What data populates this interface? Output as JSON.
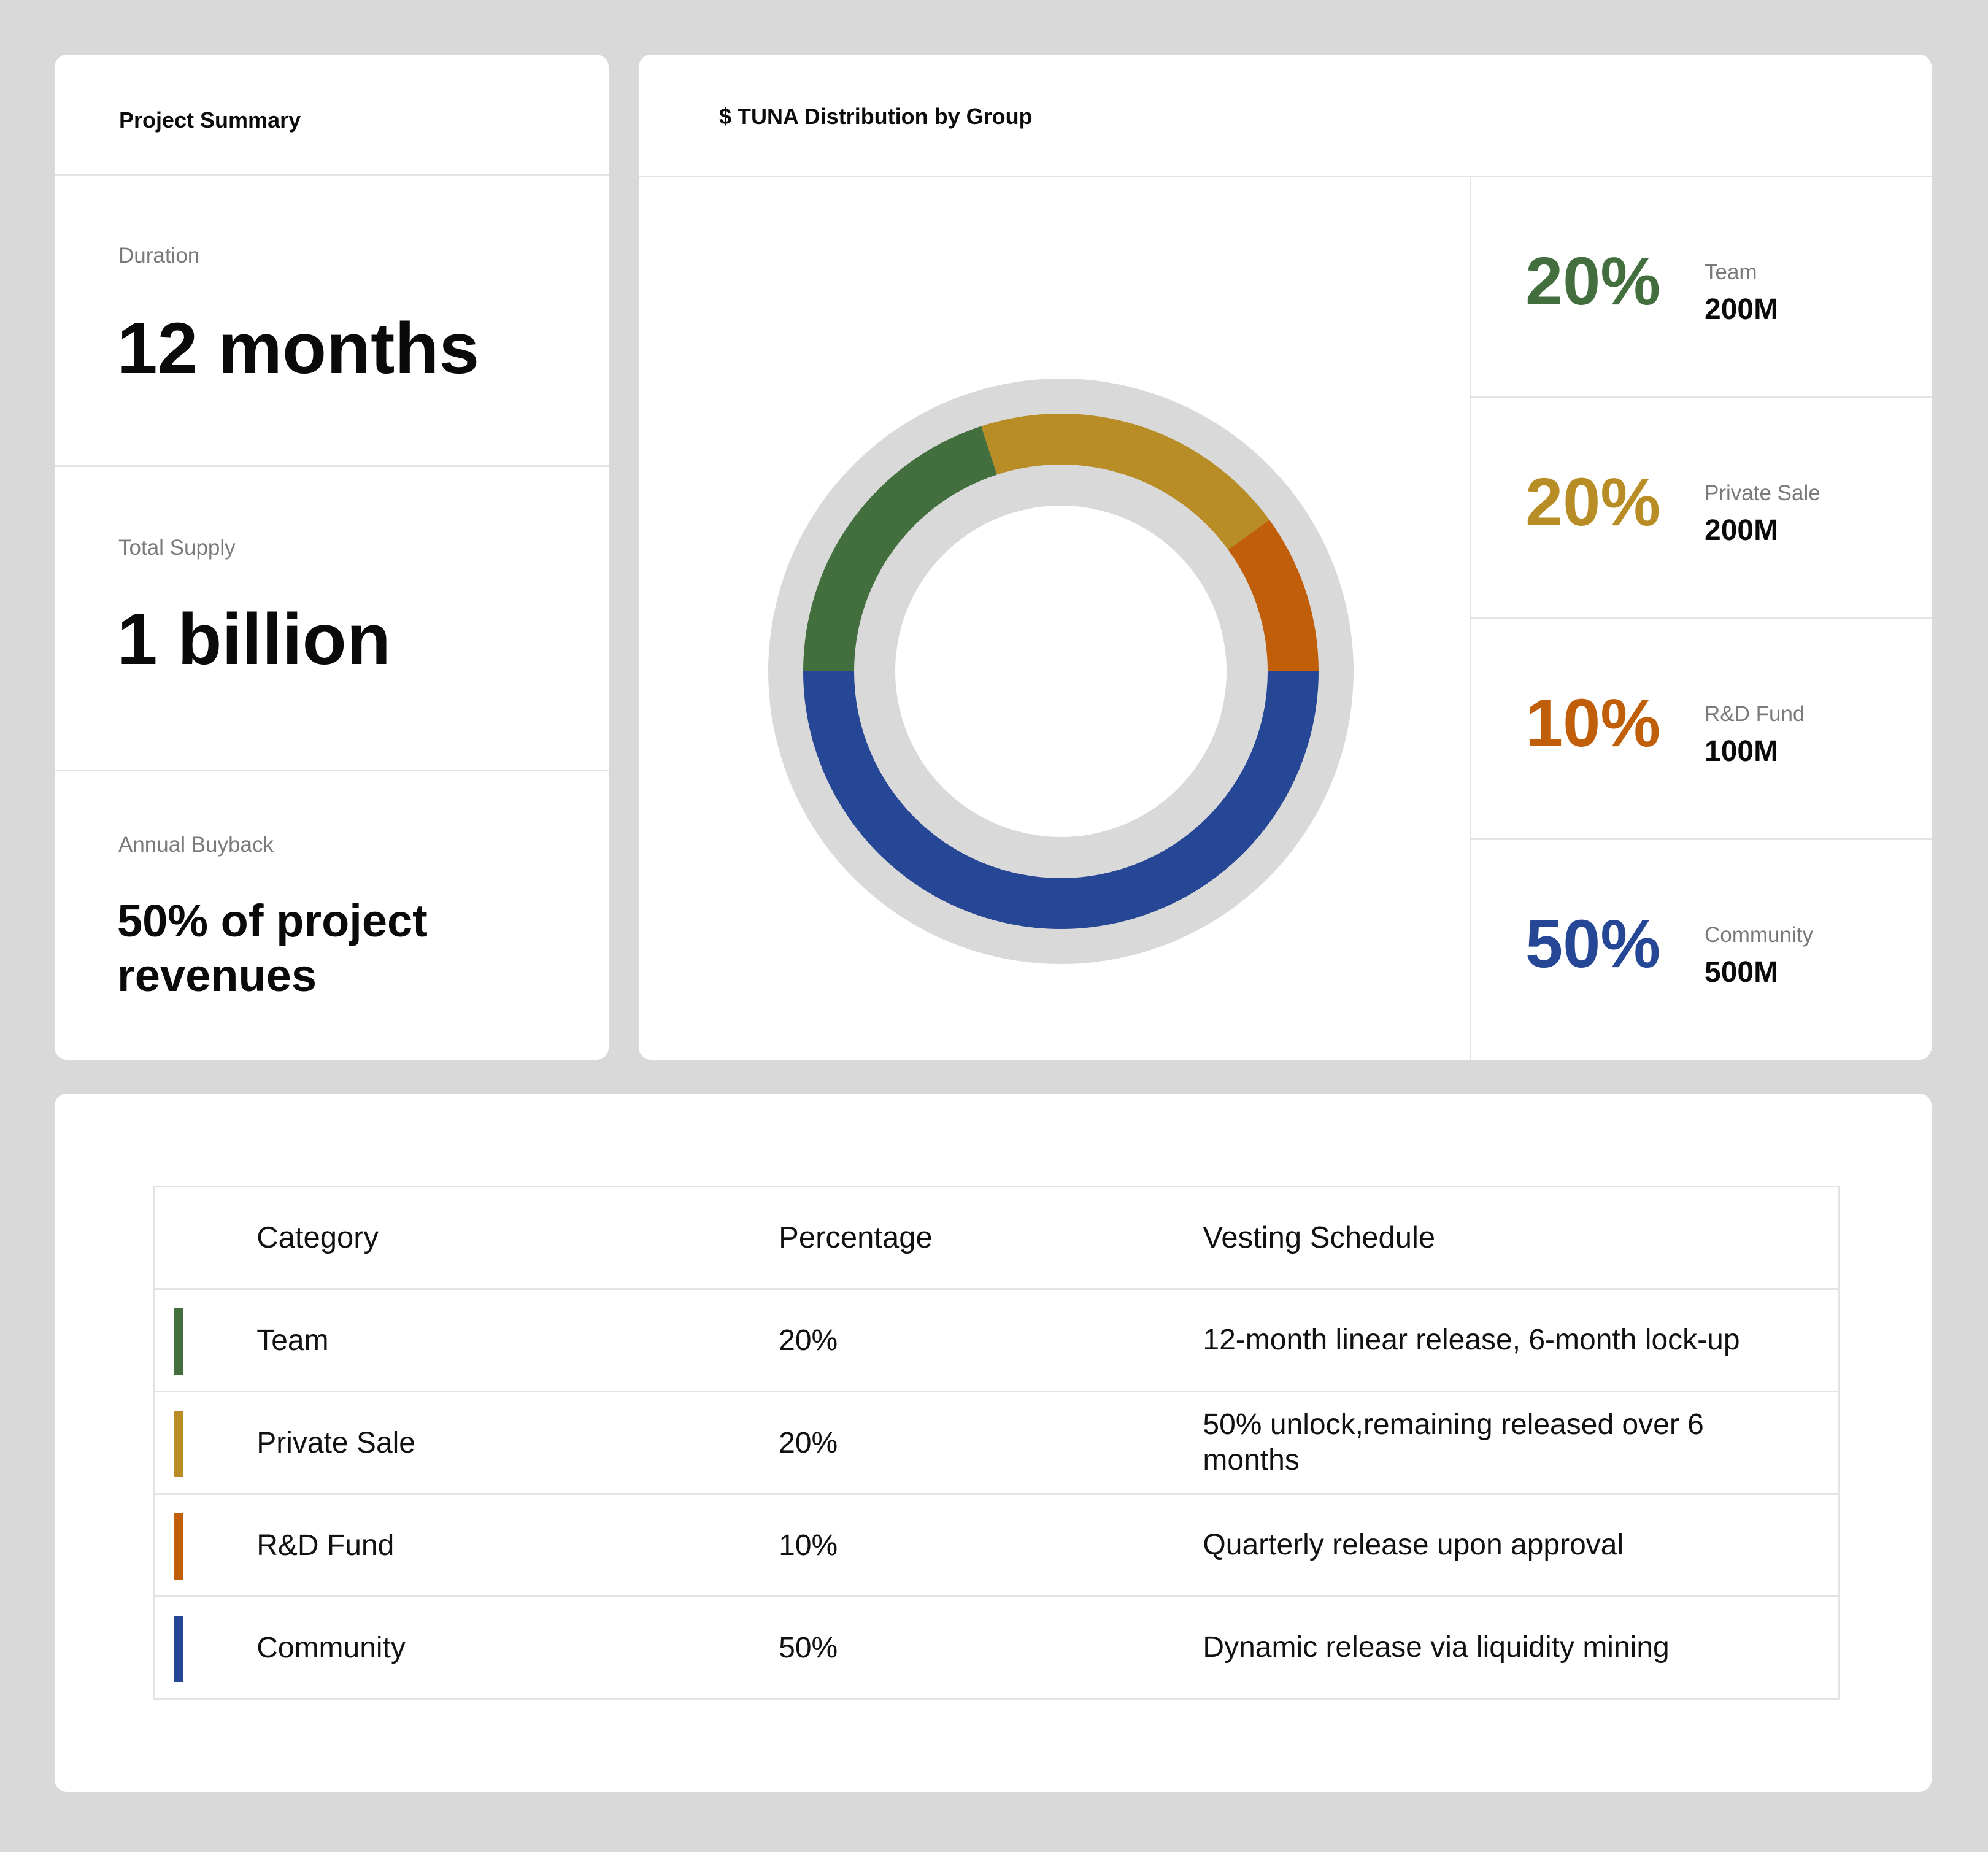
{
  "summary": {
    "title": "Project Summary",
    "duration": {
      "label": "Duration",
      "value": "12 months"
    },
    "total_supply": {
      "label": "Total Supply",
      "value": "1 billion"
    },
    "annual_buyback": {
      "label": "Annual Buyback",
      "value": "50% of project revenues"
    }
  },
  "distribution": {
    "title": "$ TUNA Distribution by Group",
    "groups": [
      {
        "name": "Team",
        "percent": "20%",
        "amount": "200M",
        "color": "#436e3d"
      },
      {
        "name": "Private Sale",
        "percent": "20%",
        "amount": "200M",
        "color": "#b88d25"
      },
      {
        "name": "R&D Fund",
        "percent": "10%",
        "amount": "100M",
        "color": "#c05e0a"
      },
      {
        "name": "Community",
        "percent": "50%",
        "amount": "500M",
        "color": "#264696"
      }
    ]
  },
  "chart_data": {
    "type": "pie",
    "categories": [
      "Team",
      "Private Sale",
      "R&D Fund",
      "Community"
    ],
    "values": [
      20,
      20,
      10,
      50
    ],
    "colors": [
      "#436e3d",
      "#b88d25",
      "#c05e0a",
      "#264696"
    ],
    "track_color": "#d9d9d9"
  },
  "table": {
    "headers": {
      "category": "Category",
      "percentage": "Percentage",
      "vesting": "Vesting Schedule"
    },
    "rows": [
      {
        "category": "Team",
        "percentage": "20%",
        "vesting": "12-month linear release, 6-month lock-up",
        "color": "#436e3d"
      },
      {
        "category": "Private Sale",
        "percentage": "20%",
        "vesting": "50% unlock,remaining released over 6 months",
        "color": "#b88d25"
      },
      {
        "category": "R&D Fund",
        "percentage": "10%",
        "vesting": "Quarterly release upon approval",
        "color": "#c05e0a"
      },
      {
        "category": "Community",
        "percentage": "50%",
        "vesting": "Dynamic release via liquidity mining",
        "color": "#264696"
      }
    ]
  }
}
